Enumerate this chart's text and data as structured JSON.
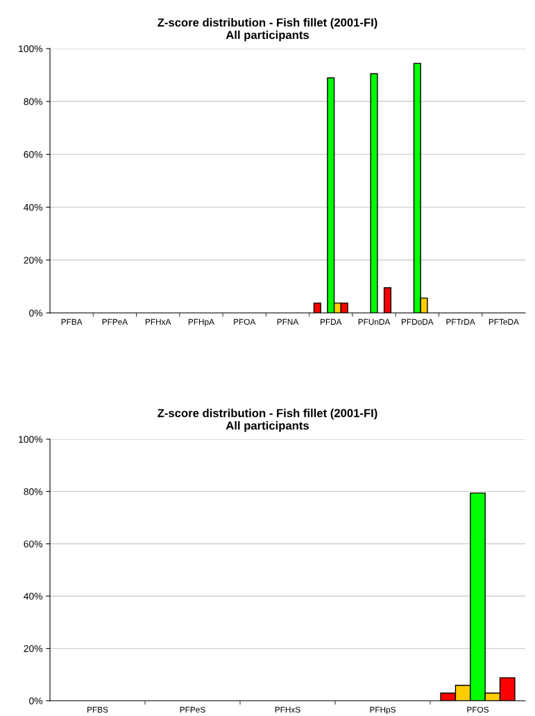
{
  "chart_data": [
    {
      "type": "bar",
      "title": "Z-score distribution - Fish fillet (2001-FI)",
      "subtitle": "All participants",
      "categories": [
        "PFBA",
        "PFPeA",
        "PFHxA",
        "PFHpA",
        "PFOA",
        "PFNA",
        "PFDA",
        "PFUnDA",
        "PFDoDA",
        "PFTrDA",
        "PFTeDA"
      ],
      "series": [
        {
          "color": "#ff0000",
          "values": [
            0,
            0,
            0,
            0,
            0,
            0,
            3.7,
            0,
            0,
            0,
            0
          ]
        },
        {
          "color": "#ffcc00",
          "values": [
            0,
            0,
            0,
            0,
            0,
            0,
            0,
            0,
            0,
            0,
            0
          ]
        },
        {
          "color": "#00ff00",
          "values": [
            0,
            0,
            0,
            0,
            0,
            0,
            88.9,
            90.5,
            94.4,
            0,
            0
          ]
        },
        {
          "color": "#ffcc00",
          "values": [
            0,
            0,
            0,
            0,
            0,
            0,
            3.7,
            0,
            5.6,
            0,
            0
          ]
        },
        {
          "color": "#ff0000",
          "values": [
            0,
            0,
            0,
            0,
            0,
            0,
            3.7,
            9.5,
            0,
            0,
            0
          ]
        }
      ],
      "ylim": [
        0,
        100
      ],
      "yticks": [
        {
          "value": 0,
          "label": "0%"
        },
        {
          "value": 20,
          "label": "20%"
        },
        {
          "value": 40,
          "label": "40%"
        },
        {
          "value": 60,
          "label": "60%"
        },
        {
          "value": 80,
          "label": "80%"
        },
        {
          "value": 100,
          "label": "100%"
        }
      ],
      "grid": "y",
      "legend": false
    },
    {
      "type": "bar",
      "title": "Z-score distribution - Fish fillet (2001-FI)",
      "subtitle": "All participants",
      "categories": [
        "PFBS",
        "PFPeS",
        "PFHxS",
        "PFHpS",
        "PFOS"
      ],
      "series": [
        {
          "color": "#ff0000",
          "values": [
            0,
            0,
            0,
            0,
            2.9
          ]
        },
        {
          "color": "#ffcc00",
          "values": [
            0,
            0,
            0,
            0,
            5.9
          ]
        },
        {
          "color": "#00ff00",
          "values": [
            0,
            0,
            0,
            0,
            79.4
          ]
        },
        {
          "color": "#ffcc00",
          "values": [
            0,
            0,
            0,
            0,
            2.9
          ]
        },
        {
          "color": "#ff0000",
          "values": [
            0,
            0,
            0,
            0,
            8.8
          ]
        }
      ],
      "ylim": [
        0,
        100
      ],
      "yticks": [
        {
          "value": 0,
          "label": "0%"
        },
        {
          "value": 20,
          "label": "20%"
        },
        {
          "value": 40,
          "label": "40%"
        },
        {
          "value": 60,
          "label": "60%"
        },
        {
          "value": 80,
          "label": "80%"
        },
        {
          "value": 100,
          "label": "100%"
        }
      ],
      "grid": "y",
      "legend": false
    }
  ]
}
